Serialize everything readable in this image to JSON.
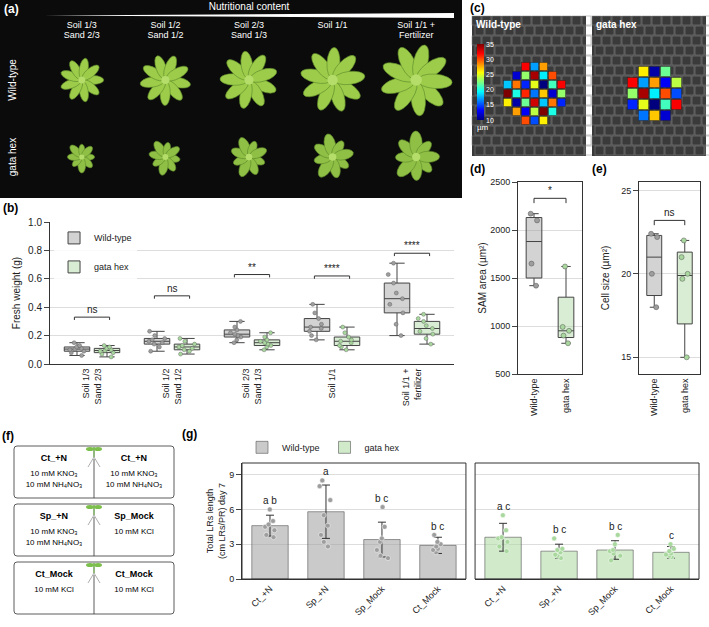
{
  "panel_a": {
    "label": "(a)",
    "header": "Nutritional content",
    "columns": [
      "Soil 1/3 Sand 2/3",
      "Soil 1/2 Sand 1/2",
      "Soil 2/3 Sand 1/3",
      "Soil 1/1",
      "Soil 1/1 + Fertilizer"
    ],
    "rows": [
      "Wild-type",
      "gata hex"
    ]
  },
  "panel_c": {
    "label": "(c)",
    "images": [
      "Wild-type",
      "gata hex"
    ],
    "colorbar": {
      "range": [
        10,
        35
      ],
      "ticks": [
        10,
        15,
        20,
        25,
        30,
        35
      ],
      "unit": "µm"
    }
  },
  "panel_f": {
    "label": "(f)",
    "rows": [
      {
        "left": {
          "name": "Ct_+N",
          "medium": [
            "10 mM KNO₃",
            "10 mM NH₄NO₃"
          ]
        },
        "right": {
          "name": "Ct_+N",
          "medium": [
            "10 mM KNO₃",
            "10 mM NH₄NO₃"
          ]
        }
      },
      {
        "left": {
          "name": "Sp_+N",
          "medium": [
            "10 mM KNO₃",
            "10 mM NH₄NO₃"
          ]
        },
        "right": {
          "name": "Sp_Mock",
          "medium": [
            "10 mM KCl"
          ]
        }
      },
      {
        "left": {
          "name": "Ct_Mock",
          "medium": [
            "10 mM KCl"
          ]
        },
        "right": {
          "name": "Ct_Mock",
          "medium": [
            "10 mM KCl"
          ]
        }
      }
    ]
  },
  "chart_data": [
    {
      "label": "(b)",
      "type": "box",
      "y_label": "Fresh weight (g)",
      "categories": [
        "Soil 1/3 Sand 2/3",
        "Soil 1/2 Sand 1/2",
        "Soil 2/3 Sand 1/3",
        "Soil 1/1",
        "Soil 1/1 + fertilizer"
      ],
      "ylim": [
        0,
        1.0
      ],
      "yticks": [
        {
          "value": 0,
          "label": "0.0"
        },
        0.2,
        0.4,
        0.6,
        0.8,
        {
          "value": 1.0,
          "label": "1.0"
        }
      ],
      "grid": true,
      "legend": "top left",
      "series": [
        {
          "name": "Wild-type",
          "color": "#9e9e9e",
          "q1": [
            0.09,
            0.14,
            0.19,
            0.23,
            0.36
          ],
          "median": [
            0.105,
            0.16,
            0.21,
            0.26,
            0.46
          ],
          "q3": [
            0.12,
            0.18,
            0.24,
            0.32,
            0.57
          ],
          "lower": [
            0.06,
            0.09,
            0.15,
            0.17,
            0.2
          ],
          "upper": [
            0.15,
            0.23,
            0.3,
            0.42,
            0.71
          ],
          "points": [
            [
              0.06,
              0.08,
              0.09,
              0.1,
              0.105,
              0.11,
              0.12,
              0.13,
              0.15
            ],
            [
              0.09,
              0.12,
              0.14,
              0.15,
              0.16,
              0.17,
              0.18,
              0.2,
              0.23
            ],
            [
              0.15,
              0.17,
              0.19,
              0.2,
              0.21,
              0.22,
              0.24,
              0.26,
              0.3
            ],
            [
              0.17,
              0.2,
              0.23,
              0.25,
              0.26,
              0.28,
              0.32,
              0.36,
              0.42
            ],
            [
              0.2,
              0.28,
              0.36,
              0.42,
              0.46,
              0.5,
              0.57,
              0.63,
              0.71
            ]
          ]
        },
        {
          "name": "gata hex",
          "color": "#a9d89e",
          "q1": [
            0.08,
            0.1,
            0.13,
            0.13,
            0.21
          ],
          "median": [
            0.095,
            0.12,
            0.15,
            0.16,
            0.25
          ],
          "q3": [
            0.11,
            0.14,
            0.17,
            0.19,
            0.3
          ],
          "lower": [
            0.05,
            0.07,
            0.1,
            0.1,
            0.14
          ],
          "upper": [
            0.13,
            0.18,
            0.22,
            0.26,
            0.35
          ],
          "points": [
            [
              0.05,
              0.07,
              0.08,
              0.09,
              0.095,
              0.1,
              0.11,
              0.12,
              0.13
            ],
            [
              0.07,
              0.09,
              0.1,
              0.11,
              0.12,
              0.13,
              0.14,
              0.16,
              0.18
            ],
            [
              0.1,
              0.12,
              0.13,
              0.14,
              0.15,
              0.16,
              0.17,
              0.19,
              0.22
            ],
            [
              0.1,
              0.12,
              0.13,
              0.15,
              0.16,
              0.17,
              0.19,
              0.22,
              0.26
            ],
            [
              0.14,
              0.18,
              0.21,
              0.23,
              0.25,
              0.27,
              0.3,
              0.32,
              0.35
            ]
          ]
        }
      ],
      "significance": [
        {
          "category": "Soil 1/3 Sand 2/3",
          "label": "ns",
          "y": 0.33
        },
        {
          "category": "Soil 1/2 Sand 1/2",
          "label": "ns",
          "y": 0.48
        },
        {
          "category": "Soil 2/3 Sand 1/3",
          "label": "**",
          "y": 0.63
        },
        {
          "category": "Soil 1/1",
          "label": "****",
          "y": 0.62
        },
        {
          "category": "Soil 1/1 + fertilizer",
          "label": "****",
          "y": 0.78
        }
      ]
    },
    {
      "label": "(d)",
      "type": "box",
      "y_label": "SAM area (µm²)",
      "categories": [
        "Wild-type",
        "gata hex"
      ],
      "colors": [
        "#9e9e9e",
        "#a9d89e"
      ],
      "q1": [
        1500,
        880
      ],
      "median": [
        1880,
        950
      ],
      "q3": [
        2130,
        1300
      ],
      "lower": [
        1420,
        820
      ],
      "upper": [
        2170,
        1620
      ],
      "points": [
        [
          2170,
          2100,
          1650,
          1420
        ],
        [
          1620,
          990,
          950,
          900,
          820
        ]
      ],
      "ylim": [
        500,
        2500
      ],
      "yticks": [
        500,
        1000,
        1500,
        2000,
        2500
      ],
      "grid": true,
      "significance": [
        {
          "between": [
            "Wild-type",
            "gata hex"
          ],
          "label": "*",
          "y": 2330
        }
      ]
    },
    {
      "label": "(e)",
      "type": "box",
      "y_label": "Cell size (µm²)",
      "categories": [
        "Wild-type",
        "gata hex"
      ],
      "colors": [
        "#9e9e9e",
        "#a9d89e"
      ],
      "q1": [
        18.7,
        17.0
      ],
      "median": [
        21.0,
        19.9
      ],
      "q3": [
        22.3,
        21.3
      ],
      "lower": [
        18.0,
        15.0
      ],
      "upper": [
        22.4,
        22.0
      ],
      "points": [
        [
          22.4,
          22.2,
          20.0,
          18.0
        ],
        [
          22.0,
          21.0,
          20.0,
          19.7,
          15.0
        ]
      ],
      "ylim": [
        14,
        25.5
      ],
      "yticks": [
        15,
        20,
        25
      ],
      "grid": true,
      "significance": [
        {
          "between": [
            "Wild-type",
            "gata hex"
          ],
          "label": "ns",
          "y": 23.2
        }
      ]
    },
    {
      "label": "(g)",
      "type": "bar",
      "y_label": "Total LRs length (cm LRs/PR) day 7",
      "categories": [
        "Ct_+N",
        "Sp_+N",
        "Sp_Mock",
        "Ct_Mock"
      ],
      "ylim": [
        0,
        10
      ],
      "yticks": [
        0,
        3,
        6,
        9
      ],
      "grid": true,
      "legend": "top",
      "series": [
        {
          "name": "Wild-type",
          "color": "#9e9e9e",
          "values": [
            4.6,
            5.8,
            3.4,
            2.9
          ],
          "error": [
            0.9,
            2.3,
            1.5,
            0.7
          ],
          "letters": [
            "a b",
            "a",
            "b c",
            "b c"
          ],
          "points": [
            [
              6.0,
              5.0,
              4.7,
              4.5,
              4.2,
              3.8,
              3.6
            ],
            [
              8.5,
              8.0,
              6.8,
              5.5,
              4.6,
              3.8,
              3.2,
              2.8
            ],
            [
              6.2,
              4.5,
              3.2,
              2.5,
              2.0,
              1.8,
              3.5
            ],
            [
              3.8,
              3.2,
              3.0,
              2.8,
              2.5,
              2.3,
              2.6
            ]
          ]
        },
        {
          "name": "gata hex",
          "color": "#a9d89e",
          "values": [
            3.6,
            2.4,
            2.5,
            2.3
          ],
          "error": [
            1.2,
            0.6,
            0.8,
            0.5
          ],
          "letters": [
            "a c",
            "b c",
            "b c",
            "c"
          ],
          "points": [
            [
              5.5,
              4.2,
              3.6,
              3.2,
              2.8,
              2.4,
              3.5
            ],
            [
              3.5,
              2.6,
              2.3,
              2.1,
              2.0,
              1.8,
              2.5
            ],
            [
              3.8,
              3.0,
              2.5,
              2.2,
              2.0,
              1.6,
              2.4
            ],
            [
              3.0,
              2.6,
              2.4,
              2.2,
              2.0,
              1.9,
              2.1
            ]
          ]
        }
      ]
    }
  ]
}
